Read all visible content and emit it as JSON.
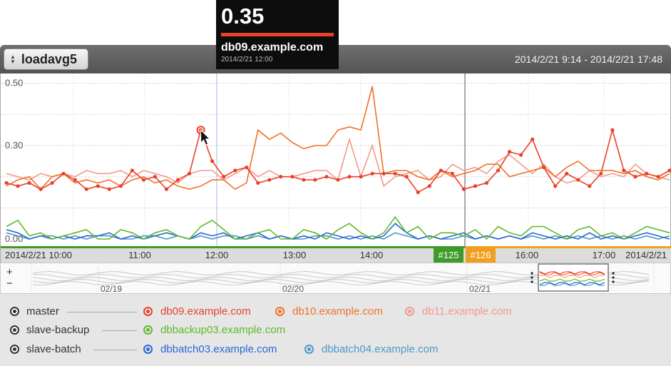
{
  "tooltip": {
    "value": "0.35",
    "host": "db09.example.com",
    "timestamp": "2014/2/21 12:00"
  },
  "header": {
    "metric": "loadavg5",
    "time_range": "2014/2/21 9:14 - 2014/2/21 17:48"
  },
  "chart_data": {
    "type": "line",
    "ylim": [
      0,
      0.52
    ],
    "y_ticks": [
      "0.50",
      "0.30",
      "0.00"
    ],
    "y_tick_values": [
      0.5,
      0.3,
      0.0
    ],
    "x_tick_labels": [
      "2014/2/21 10:00",
      "11:00",
      "12:00",
      "13:00",
      "14:00",
      "16:00",
      "17:00",
      "2014/2/21"
    ],
    "annotations": [
      {
        "label": "#125",
        "color": "#3e9b2a"
      },
      {
        "label": "#126",
        "color": "#f0a020"
      }
    ],
    "series": [
      {
        "name": "db09.example.com",
        "color": "#e8402a",
        "markers": true,
        "values": [
          0.18,
          0.17,
          0.18,
          0.16,
          0.18,
          0.21,
          0.19,
          0.16,
          0.17,
          0.16,
          0.17,
          0.22,
          0.19,
          0.2,
          0.16,
          0.19,
          0.21,
          0.35,
          0.25,
          0.2,
          0.22,
          0.23,
          0.18,
          0.19,
          0.2,
          0.2,
          0.19,
          0.19,
          0.2,
          0.19,
          0.2,
          0.2,
          0.21,
          0.21,
          0.21,
          0.2,
          0.15,
          0.17,
          0.22,
          0.21,
          0.16,
          0.17,
          0.18,
          0.22,
          0.28,
          0.27,
          0.32,
          0.23,
          0.17,
          0.21,
          0.19,
          0.17,
          0.21,
          0.35,
          0.22,
          0.2,
          0.21,
          0.2,
          0.22
        ]
      },
      {
        "name": "db10.example.com",
        "color": "#f07028",
        "markers": false,
        "values": [
          0.17,
          0.19,
          0.2,
          0.16,
          0.2,
          0.21,
          0.18,
          0.19,
          0.18,
          0.19,
          0.17,
          0.19,
          0.2,
          0.18,
          0.19,
          0.17,
          0.16,
          0.17,
          0.19,
          0.19,
          0.16,
          0.18,
          0.35,
          0.32,
          0.34,
          0.31,
          0.29,
          0.3,
          0.3,
          0.35,
          0.36,
          0.35,
          0.49,
          0.21,
          0.22,
          0.22,
          0.2,
          0.19,
          0.22,
          0.2,
          0.21,
          0.22,
          0.24,
          0.24,
          0.2,
          0.21,
          0.22,
          0.23,
          0.2,
          0.23,
          0.25,
          0.22,
          0.22,
          0.22,
          0.21,
          0.22,
          0.2,
          0.19,
          0.21
        ]
      },
      {
        "name": "db11.example.com",
        "color": "#f29a88",
        "markers": false,
        "values": [
          0.21,
          0.2,
          0.19,
          0.21,
          0.2,
          0.21,
          0.2,
          0.22,
          0.21,
          0.21,
          0.22,
          0.2,
          0.22,
          0.21,
          0.2,
          0.18,
          0.21,
          0.22,
          0.22,
          0.19,
          0.21,
          0.23,
          0.2,
          0.22,
          0.2,
          0.2,
          0.21,
          0.22,
          0.22,
          0.19,
          0.32,
          0.2,
          0.3,
          0.17,
          0.2,
          0.21,
          0.22,
          0.19,
          0.2,
          0.24,
          0.22,
          0.23,
          0.21,
          0.25,
          0.27,
          0.24,
          0.21,
          0.24,
          0.2,
          0.18,
          0.19,
          0.22,
          0.2,
          0.21,
          0.2,
          0.24,
          0.21,
          0.2,
          0.19
        ]
      },
      {
        "name": "dbbackup03.example.com",
        "color": "#5dbb28",
        "markers": false,
        "values": [
          0.04,
          0.06,
          0.01,
          0.02,
          0.0,
          0.01,
          0.02,
          0.03,
          0.0,
          0.0,
          0.03,
          0.02,
          0.0,
          0.02,
          0.03,
          0.01,
          0.0,
          0.04,
          0.06,
          0.03,
          0.0,
          0.0,
          0.02,
          0.03,
          0.0,
          0.0,
          0.03,
          0.02,
          0.0,
          0.03,
          0.05,
          0.02,
          0.0,
          0.02,
          0.07,
          0.02,
          0.04,
          0.0,
          0.02,
          0.02,
          0.01,
          0.03,
          0.0,
          0.04,
          0.02,
          0.01,
          0.04,
          0.04,
          0.02,
          0.0,
          0.03,
          0.04,
          0.01,
          0.02,
          0.0,
          0.02,
          0.04,
          0.03,
          0.02
        ]
      },
      {
        "name": "dbbatch03.example.com",
        "color": "#2a66d6",
        "markers": false,
        "values": [
          0.03,
          0.02,
          0.0,
          0.01,
          0.0,
          0.01,
          0.0,
          0.01,
          0.01,
          0.02,
          0.0,
          0.01,
          0.0,
          0.01,
          0.02,
          0.01,
          0.0,
          0.02,
          0.01,
          0.02,
          0.0,
          0.01,
          0.02,
          0.0,
          0.01,
          0.0,
          0.01,
          0.0,
          0.02,
          0.01,
          0.0,
          0.01,
          0.0,
          0.01,
          0.05,
          0.02,
          0.0,
          0.01,
          0.0,
          0.01,
          0.02,
          0.0,
          0.01,
          0.0,
          0.01,
          0.0,
          0.02,
          0.01,
          0.0,
          0.01,
          0.0,
          0.02,
          0.0,
          0.01,
          0.0,
          0.01,
          0.02,
          0.01,
          0.0
        ]
      },
      {
        "name": "dbbatch04.example.com",
        "color": "#4a9ac6",
        "markers": false,
        "values": [
          0.02,
          0.01,
          0.0,
          0.01,
          0.01,
          0.0,
          0.01,
          0.0,
          0.01,
          0.01,
          0.0,
          0.0,
          0.01,
          0.01,
          0.0,
          0.01,
          0.0,
          0.01,
          0.0,
          0.01,
          0.01,
          0.0,
          0.01,
          0.0,
          0.01,
          0.0,
          0.0,
          0.01,
          0.01,
          0.0,
          0.01,
          0.0,
          0.01,
          0.0,
          0.02,
          0.01,
          0.0,
          0.01,
          0.0,
          0.0,
          0.01,
          0.0,
          0.01,
          0.0,
          0.01,
          0.0,
          0.01,
          0.0,
          0.01,
          0.0,
          0.01,
          0.0,
          0.01,
          0.0,
          0.01,
          0.0,
          0.01,
          0.0,
          0.01
        ]
      }
    ]
  },
  "overview": {
    "zoom_in": "+",
    "zoom_out": "−",
    "dates": [
      "02/19",
      "02/20",
      "02/21"
    ]
  },
  "legend": {
    "groups": [
      {
        "label": "master",
        "hosts": [
          {
            "name": "db09.example.com",
            "color": "#e8402a"
          },
          {
            "name": "db10.example.com",
            "color": "#f07028"
          },
          {
            "name": "db11.example.com",
            "color": "#f29a88"
          }
        ]
      },
      {
        "label": "slave-backup",
        "hosts": [
          {
            "name": "dbbackup03.example.com",
            "color": "#5dbb28"
          }
        ]
      },
      {
        "label": "slave-batch",
        "hosts": [
          {
            "name": "dbbatch03.example.com",
            "color": "#2a66d6"
          },
          {
            "name": "dbbatch04.example.com",
            "color": "#4a9ac6"
          }
        ]
      }
    ]
  }
}
